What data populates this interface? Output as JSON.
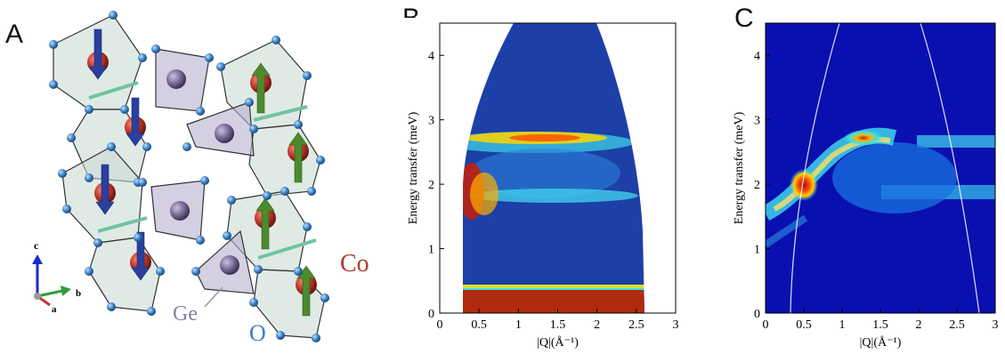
{
  "panels": {
    "A": {
      "letter": "A",
      "labels": {
        "co": "Co",
        "ge": "Ge",
        "o": "O"
      },
      "axes_triad": {
        "c": "c",
        "a": "a",
        "b": "b"
      },
      "colors": {
        "co": "#c0392b",
        "ge": "#7b6f9a",
        "o": "#3a7fc4",
        "spin_down": "#2a3f9e",
        "spin_up": "#4c8a2e",
        "bond": "#6fc4a4"
      }
    },
    "B": {
      "letter": "B"
    },
    "C": {
      "letter": "C"
    }
  },
  "chart_data": [
    {
      "type": "heatmap",
      "panel": "B",
      "xlabel": "|Q|(Å⁻¹)",
      "ylabel": "Energy transfer (meV)",
      "xlim": [
        0,
        3
      ],
      "ylim": [
        0,
        4.5
      ],
      "x_ticks": [
        "0",
        "0.5",
        "1",
        "1.5",
        "2",
        "2.5",
        "3"
      ],
      "y_ticks": [
        "0",
        "1",
        "2",
        "3",
        "4"
      ],
      "features": [
        {
          "name": "elastic line",
          "energy": 0.2
        },
        {
          "name": "upper band",
          "energy": 2.75
        },
        {
          "name": "lower band",
          "energy": 1.9
        }
      ]
    },
    {
      "type": "heatmap",
      "panel": "C",
      "xlabel": "|Q|(Å⁻¹)",
      "ylabel": "Energy transfer (meV)",
      "xlim": [
        0,
        3
      ],
      "ylim": [
        0,
        4.5
      ],
      "x_ticks": [
        "0",
        "0.5",
        "1",
        "1.5",
        "2",
        "2.5",
        "3"
      ],
      "y_ticks": [
        "0",
        "1",
        "2",
        "3",
        "4"
      ],
      "features": [
        {
          "name": "upper band",
          "energy": 2.7
        },
        {
          "name": "lower band",
          "energy": 1.9
        }
      ]
    }
  ]
}
